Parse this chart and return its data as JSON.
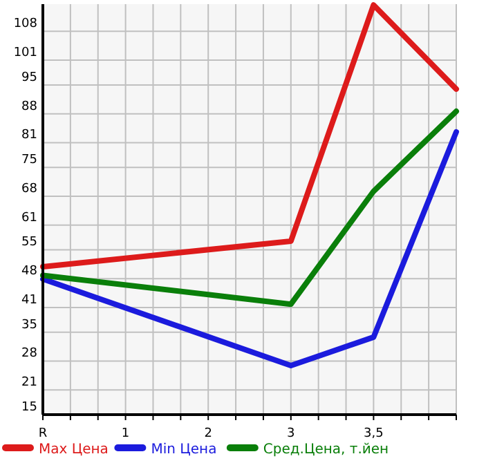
{
  "chart_data": {
    "type": "line",
    "categories": [
      "R",
      "1",
      "2",
      "3",
      "3,5",
      null
    ],
    "series": [
      {
        "name": "Max Цена",
        "color": "#dd1b1b",
        "values": [
          50.9,
          null,
          null,
          57.1,
          114.4,
          94.0
        ]
      },
      {
        "name": "Min Цена",
        "color": "#1b1bdd",
        "values": [
          47.9,
          null,
          null,
          26.9,
          33.8,
          83.6
        ]
      },
      {
        "name": "Сред.Цена, т.йен",
        "color": "#0a7f0a",
        "values": [
          48.8,
          null,
          null,
          41.8,
          69.2,
          88.6
        ]
      }
    ],
    "ylim": [
      15,
      114.6
    ],
    "yticks": [
      15,
      21,
      28,
      35,
      41,
      48,
      55,
      61,
      68,
      75,
      81,
      88,
      95,
      101,
      108
    ],
    "grid": true,
    "legend": "bottom",
    "marker": "none",
    "line_style": "solid"
  }
}
